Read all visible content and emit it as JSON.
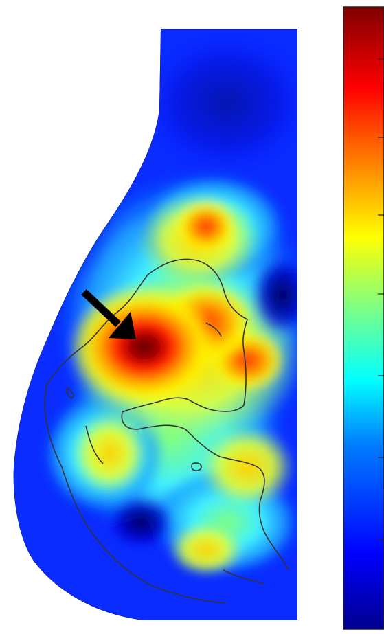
{
  "figure": {
    "colormap": [
      "#00008f",
      "#0000ff",
      "#0080ff",
      "#00ffff",
      "#80ff80",
      "#ffff00",
      "#ff8000",
      "#ff0000",
      "#800000"
    ],
    "background": "#ffffff",
    "arrow_color": "#000000",
    "contour_color": "#333333",
    "icons": [
      "arrow-pointer-icon"
    ]
  }
}
